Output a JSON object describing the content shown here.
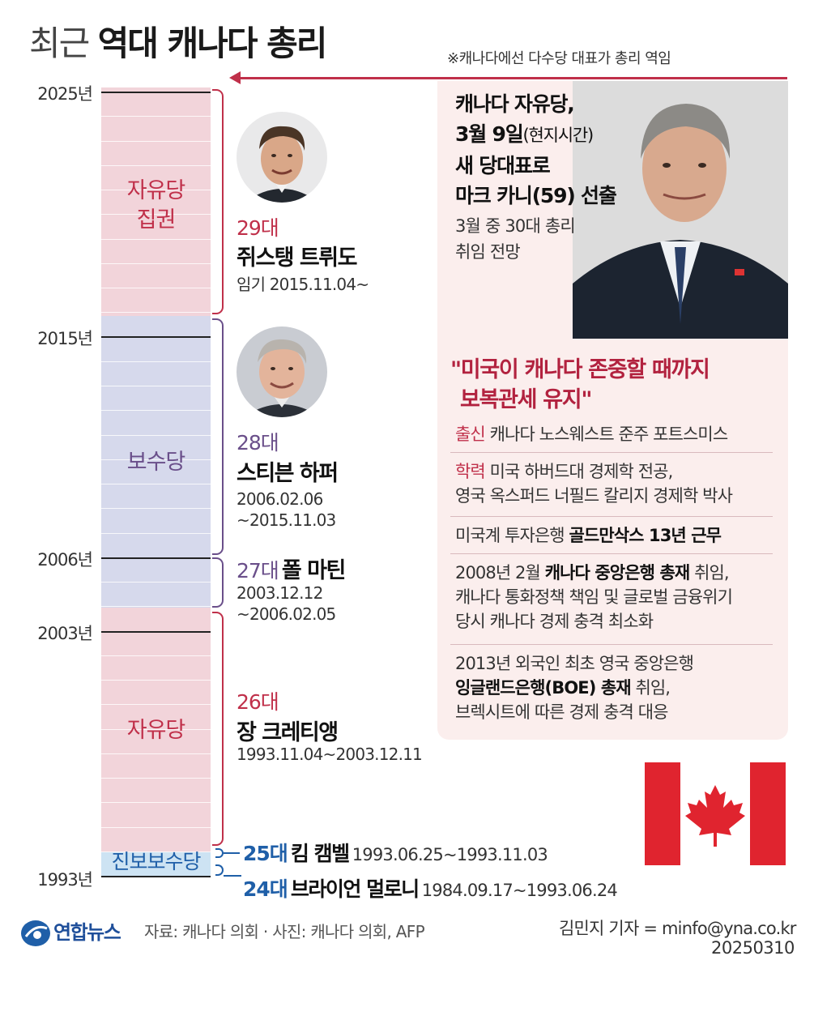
{
  "title": {
    "light": "최근",
    "bold": "역대 캐나다 총리"
  },
  "note": "※캐나다에선 다수당 대표가 총리 역임",
  "years": {
    "y2025": "2025년",
    "y2015": "2015년",
    "y2006": "2006년",
    "y2003": "2003년",
    "y1993": "1993년"
  },
  "segments": {
    "liberal_ruling": {
      "line1": "자유당",
      "line2": "집권"
    },
    "conservative": "보수당",
    "liberal": "자유당",
    "progressive_conservative": "진보보수당"
  },
  "colors": {
    "liberal": "#c0304a",
    "conservative": "#6a4f8a",
    "pc": "#1f5fa8"
  },
  "pms": [
    {
      "num": "29대",
      "name": "쥐스탱 트뤼도",
      "term": "임기 2015.11.04~"
    },
    {
      "num": "28대",
      "name": "스티븐 하퍼",
      "term1": "2006.02.06",
      "term2": "~2015.11.03"
    },
    {
      "num": "27대",
      "name": "폴 마틴",
      "term1": "2003.12.12",
      "term2": "~2006.02.05"
    },
    {
      "num": "26대",
      "name": "장 크레티앵",
      "term": "1993.11.04~2003.12.11"
    },
    {
      "num": "25대",
      "name": "킴 캠벨",
      "term": "1993.06.25~1993.11.03"
    },
    {
      "num": "24대",
      "name": "브라이언 멀로니",
      "term": "1984.09.17~1993.06.24"
    }
  ],
  "carney": {
    "line1": "캐나다 자유당,",
    "line2_bold": "3월 9일",
    "line2_reg": "(현지시간)",
    "line3": "새 당대표로",
    "line4": "마크 카니(59) 선출",
    "sub1": "3월 중 30대 총리",
    "sub2": "취임 전망",
    "quote1": "\"미국이 캐나다 존중할 때까지",
    "quote2": "보복관세 유지\""
  },
  "profile": {
    "origin_tag": "출신",
    "origin": " 캐나다 노스웨스트 준주 포트스미스",
    "edu_tag": "학력",
    "edu1": " 미국 하버드대 경제학 전공,",
    "edu2": "영국 옥스퍼드 너필드 칼리지 경제학 박사",
    "career1_a": "미국계 투자은행 ",
    "career1_b": "골드만삭스 13년 근무",
    "career2_a": "2008년 2월 ",
    "career2_b": "캐나다 중앙은행 총재",
    "career2_c": " 취임,",
    "career2_d": "캐나다 통화정책 책임 및 글로벌 금융위기",
    "career2_e": "당시 캐나다 경제 충격 최소화",
    "career3_a": "2013년 외국인 최초 영국 중앙은행",
    "career3_b": "잉글랜드은행(BOE) 총재",
    "career3_c": " 취임,",
    "career3_d": "브렉시트에 따른 경제 충격 대응"
  },
  "footer": {
    "logo": "연합뉴스",
    "source": "자료: 캐나다 의회 · 사진: 캐나다 의회, AFP",
    "reporter": "김민지 기자 = minfo@yna.co.kr",
    "date": "20250310"
  }
}
